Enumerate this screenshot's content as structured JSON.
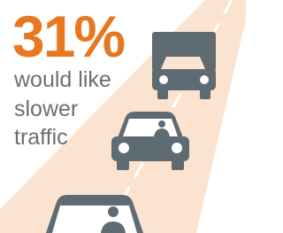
{
  "stat": {
    "value": "31%",
    "caption_lines": [
      "would like",
      "slower",
      "traffic"
    ]
  }
}
